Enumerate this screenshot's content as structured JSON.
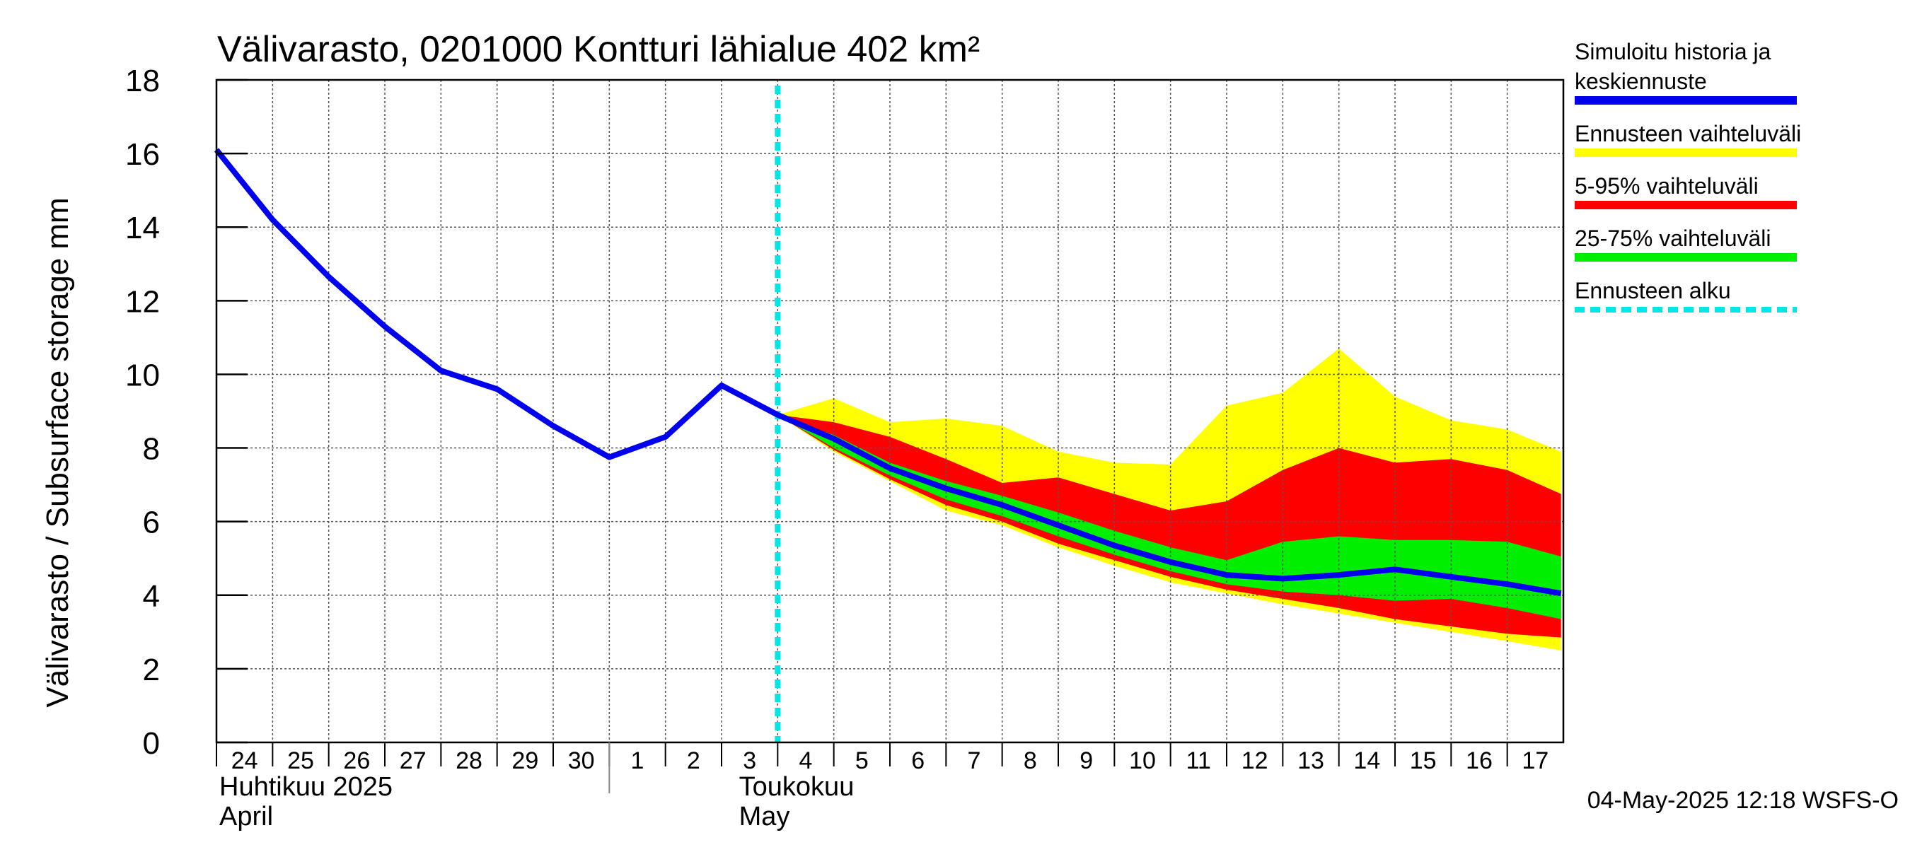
{
  "chart_data": {
    "type": "area",
    "title": "Välivarasto, 0201000 Kontturi lähialue 402 km²",
    "ylabel": "Välivarasto / Subsurface storage  mm",
    "ylim": [
      0,
      18
    ],
    "yticks": [
      "0",
      "2",
      "4",
      "6",
      "8",
      "10",
      "12",
      "14",
      "16",
      "18"
    ],
    "x_start": "2025-04-24",
    "x_end": "2025-05-17",
    "day_labels": [
      "24",
      "25",
      "26",
      "27",
      "28",
      "29",
      "30",
      "1",
      "2",
      "3",
      "4",
      "5",
      "6",
      "7",
      "8",
      "9",
      "10",
      "11",
      "12",
      "13",
      "14",
      "15",
      "16",
      "17"
    ],
    "month_labels": [
      {
        "fi": "Huhtikuu  2025",
        "en": "April"
      },
      {
        "fi": "Toukokuu",
        "en": "May"
      }
    ],
    "grid": true,
    "legend_position": "right",
    "forecast_start": "2025-05-04",
    "timestamp": "04-May-2025 12:18 WSFS-O",
    "colors": {
      "history": "#0000ee",
      "full_range": "#ffff00",
      "p5_95": "#ff0000",
      "p25_75": "#00ee00",
      "forecast_start": "#00e5e5"
    },
    "legend": [
      {
        "key": "history",
        "label_lines": [
          "Simuloitu historia ja",
          "keskiennuste"
        ],
        "style": "solid"
      },
      {
        "key": "full_range",
        "label_lines": [
          "Ennusteen vaihteluväli"
        ],
        "style": "solid"
      },
      {
        "key": "p5_95",
        "label_lines": [
          "5-95% vaihteluväli"
        ],
        "style": "solid"
      },
      {
        "key": "p25_75",
        "label_lines": [
          "25-75% vaihteluväli"
        ],
        "style": "solid"
      },
      {
        "key": "forecast_start",
        "label_lines": [
          "Ennusteen alku"
        ],
        "style": "dashed"
      }
    ],
    "series": [
      {
        "key": "history",
        "x": [
          "2025-04-24",
          "2025-04-25",
          "2025-04-26",
          "2025-04-27",
          "2025-04-28",
          "2025-04-29",
          "2025-04-30",
          "2025-05-01",
          "2025-05-02",
          "2025-05-03",
          "2025-05-04",
          "2025-05-05",
          "2025-05-06",
          "2025-05-07",
          "2025-05-08",
          "2025-05-09",
          "2025-05-10",
          "2025-05-11",
          "2025-05-12",
          "2025-05-13",
          "2025-05-14",
          "2025-05-15",
          "2025-05-16",
          "2025-05-17",
          "2025-05-17T23:00"
        ],
        "values": [
          16.1,
          14.2,
          12.65,
          11.3,
          10.1,
          9.6,
          8.6,
          7.75,
          8.3,
          9.7,
          8.9,
          8.25,
          7.45,
          6.9,
          6.45,
          5.9,
          5.35,
          4.9,
          4.55,
          4.45,
          4.55,
          4.7,
          4.5,
          4.3,
          4.05
        ]
      }
    ],
    "bands": [
      {
        "key": "full_range",
        "x": [
          "2025-05-04",
          "2025-05-05",
          "2025-05-06",
          "2025-05-07",
          "2025-05-08",
          "2025-05-09",
          "2025-05-10",
          "2025-05-11",
          "2025-05-12",
          "2025-05-13",
          "2025-05-14",
          "2025-05-15",
          "2025-05-16",
          "2025-05-17",
          "2025-05-17T23:00"
        ],
        "upper": [
          8.9,
          9.35,
          8.7,
          8.8,
          8.6,
          7.9,
          7.6,
          7.55,
          9.15,
          9.5,
          10.7,
          9.4,
          8.75,
          8.5,
          7.9
        ],
        "lower": [
          8.9,
          7.9,
          7.1,
          6.3,
          5.9,
          5.3,
          4.8,
          4.35,
          4.05,
          3.75,
          3.5,
          3.25,
          3.0,
          2.75,
          2.5
        ]
      },
      {
        "key": "p5_95",
        "x": [
          "2025-05-04",
          "2025-05-05",
          "2025-05-06",
          "2025-05-07",
          "2025-05-08",
          "2025-05-09",
          "2025-05-10",
          "2025-05-11",
          "2025-05-12",
          "2025-05-13",
          "2025-05-14",
          "2025-05-15",
          "2025-05-16",
          "2025-05-17",
          "2025-05-17T23:00"
        ],
        "upper": [
          8.9,
          8.7,
          8.3,
          7.7,
          7.05,
          7.2,
          6.75,
          6.3,
          6.55,
          7.4,
          8.0,
          7.6,
          7.7,
          7.4,
          6.75
        ],
        "lower": [
          8.9,
          7.95,
          7.15,
          6.45,
          6.0,
          5.4,
          4.95,
          4.5,
          4.15,
          3.9,
          3.65,
          3.35,
          3.15,
          2.95,
          2.85
        ]
      },
      {
        "key": "p25_75",
        "x": [
          "2025-05-04",
          "2025-05-05",
          "2025-05-06",
          "2025-05-07",
          "2025-05-08",
          "2025-05-09",
          "2025-05-10",
          "2025-05-11",
          "2025-05-12",
          "2025-05-13",
          "2025-05-14",
          "2025-05-15",
          "2025-05-16",
          "2025-05-17",
          "2025-05-17T23:00"
        ],
        "upper": [
          8.9,
          8.35,
          7.6,
          7.1,
          6.7,
          6.25,
          5.75,
          5.3,
          4.95,
          5.45,
          5.6,
          5.5,
          5.5,
          5.45,
          5.05
        ],
        "lower": [
          8.9,
          8.0,
          7.25,
          6.6,
          6.15,
          5.6,
          5.1,
          4.65,
          4.3,
          4.1,
          4.0,
          3.85,
          3.9,
          3.65,
          3.35
        ]
      }
    ]
  }
}
